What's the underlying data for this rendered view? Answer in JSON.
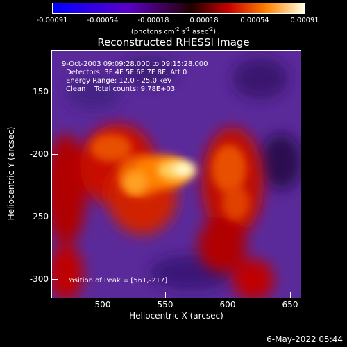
{
  "title": "Reconstructed RHESSI Image",
  "colorbar": {
    "ticks": [
      "-0.00091",
      "-0.00054",
      "-0.00018",
      "0.00018",
      "0.00054",
      "0.00091"
    ],
    "units": "(photons cm",
    "units_exp1": "-2",
    "units_mid": " s",
    "units_exp2": "-1",
    "units_mid2": " asec",
    "units_exp3": "-2",
    "units_end": ")"
  },
  "axes": {
    "xlabel": "Heliocentric X (arcsec)",
    "ylabel": "Heliocentric Y (arcsec)",
    "xticks": [
      "500",
      "550",
      "600",
      "650"
    ],
    "yticks": [
      "-150",
      "-200",
      "-250",
      "-300"
    ]
  },
  "info": {
    "time_range": "9-Oct-2003 09:09:28.000 to 09:15:28.000",
    "detectors": "Detectors: 3F 4F 5F 6F 7F 8F, Att 0",
    "energy": "Energy Range: 12.0 - 25.0 keV",
    "clean": "Clean    Total counts: 9.78E+03",
    "peak": "Position of Peak = [561,-217]"
  },
  "datestamp": "6-May-2022 05:44"
}
